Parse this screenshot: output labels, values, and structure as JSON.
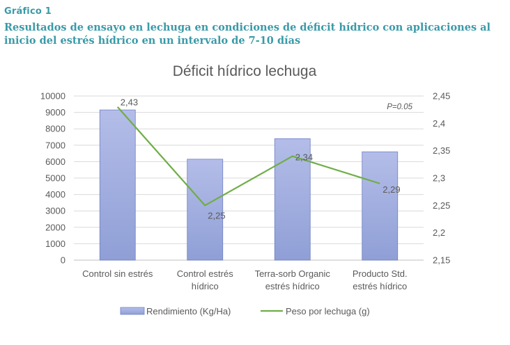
{
  "figure": {
    "label": "Gráfico 1",
    "caption": "Resultados de ensayo en lechuga en condiciones de déficit hídrico con aplicaciones al inicio del estrés hídrico en un intervalo de 7-10 días"
  },
  "chart_data": {
    "type": "bar",
    "title": "Déficit hídrico lechuga",
    "annotation": "P=0.05",
    "categories": [
      [
        "Control sin estrés"
      ],
      [
        "Control estrés",
        "hídrico"
      ],
      [
        "Terra-sorb Organic",
        "estrés hídrico"
      ],
      [
        "Producto Std.",
        "estrés hídrico"
      ]
    ],
    "series": [
      {
        "name": "Rendimiento (Kg/Ha)",
        "type": "bar",
        "axis": "left",
        "color": "#8f9fd6",
        "values": [
          9150,
          6150,
          7400,
          6600
        ]
      },
      {
        "name": "Peso por lechuga (g)",
        "type": "line",
        "axis": "right",
        "color": "#70ad47",
        "values": [
          2.43,
          2.25,
          2.34,
          2.29
        ],
        "data_labels": [
          "2,43",
          "2,25",
          "2,34",
          "2,29"
        ]
      }
    ],
    "y_left": {
      "ylim": [
        0,
        10000
      ],
      "ticks": [
        "0",
        "1000",
        "2000",
        "3000",
        "4000",
        "5000",
        "6000",
        "7000",
        "8000",
        "9000",
        "10000"
      ]
    },
    "y_right": {
      "ylim": [
        2.15,
        2.45
      ],
      "ticks": [
        "2,15",
        "2,2",
        "2,25",
        "2,3",
        "2,35",
        "2,4",
        "2,45"
      ]
    },
    "grid": true,
    "legend": "bottom"
  }
}
